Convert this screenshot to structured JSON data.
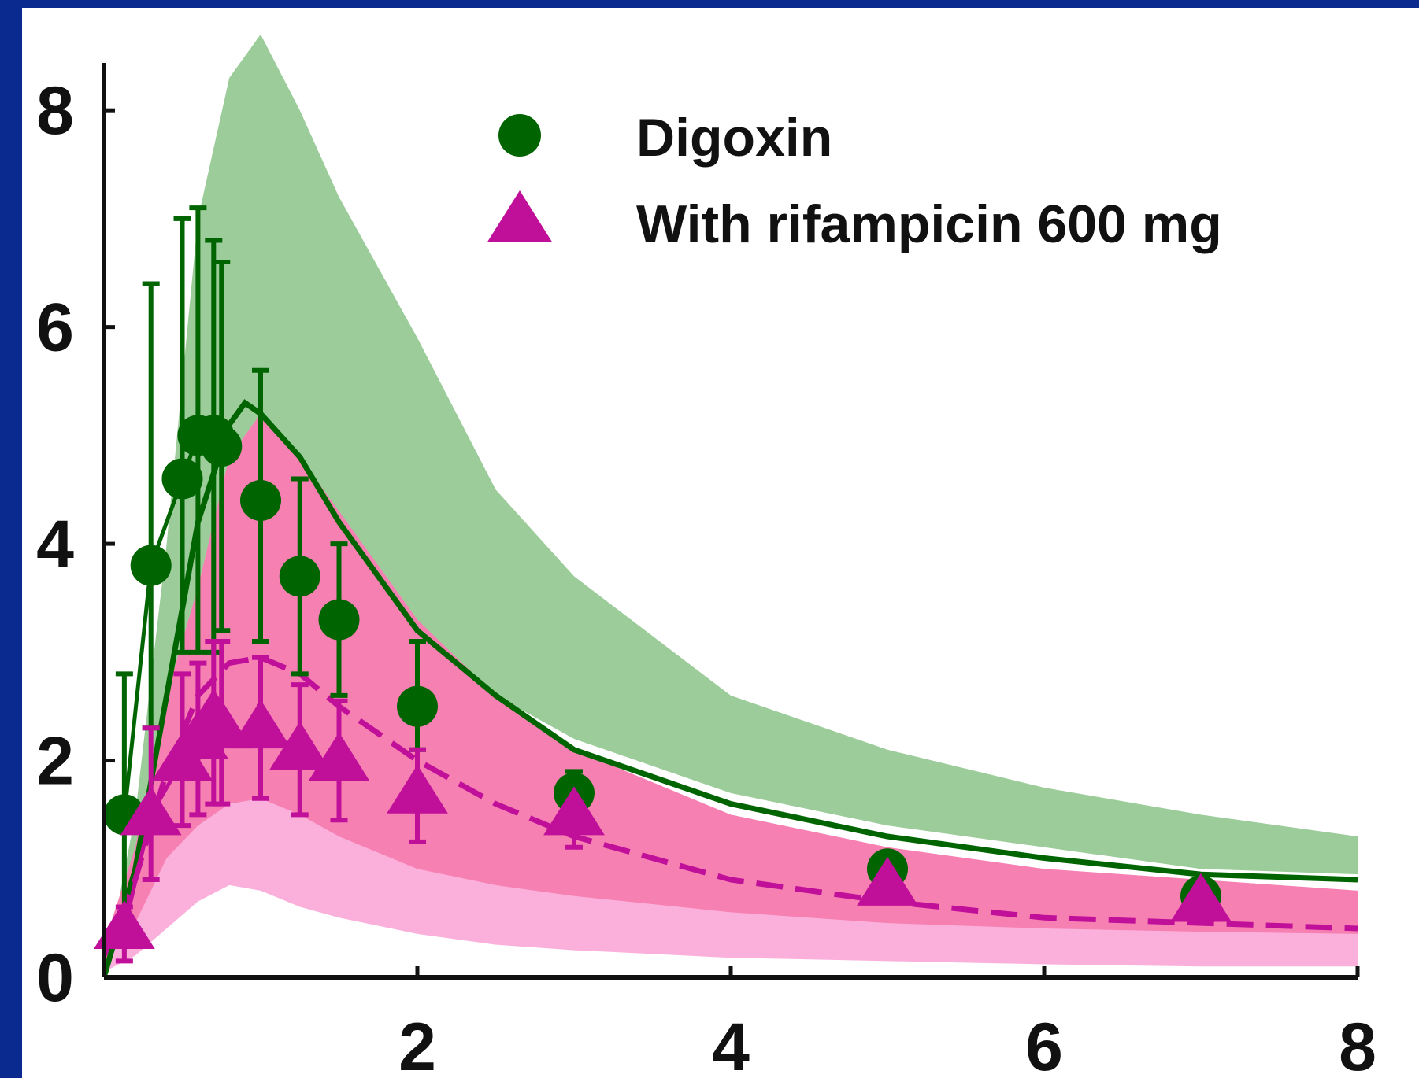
{
  "chart_data": {
    "type": "line",
    "title": "",
    "xlabel": "",
    "ylabel": "",
    "xlim": [
      0,
      8
    ],
    "ylim": [
      0,
      8.8
    ],
    "x_ticks": [
      2,
      4,
      6,
      8
    ],
    "y_ticks": [
      0,
      2,
      4,
      6,
      8
    ],
    "x_tick_labels": [
      "2",
      "4",
      "6",
      "8"
    ],
    "y_tick_labels": [
      "0",
      "2",
      "4",
      "6",
      "8"
    ],
    "grid": false,
    "legend_position": "top-right",
    "colors": {
      "digoxin": "#006400",
      "digoxin_band": "#9ccc9a",
      "rifampicin": "#c0109a",
      "rifampicin_band_outer": "#fbb0dc",
      "rifampicin_band_inner": "#f780b2"
    },
    "series": [
      {
        "name": "Digoxin",
        "marker": "circle",
        "line_style": "solid",
        "observed": {
          "x": [
            0.13,
            0.3,
            0.5,
            0.6,
            0.7,
            0.75,
            1.0,
            1.25,
            1.5,
            2.0,
            3.0,
            5.0,
            7.0
          ],
          "y": [
            1.5,
            3.8,
            4.6,
            5.0,
            5.0,
            4.9,
            4.4,
            3.7,
            3.3,
            2.5,
            1.7,
            1.0,
            0.75
          ],
          "err_low": [
            1.2,
            1.5,
            1.6,
            2.0,
            2.0,
            1.7,
            1.3,
            0.9,
            0.7,
            0.4,
            0.1,
            0.1,
            0.1
          ],
          "err_high": [
            1.3,
            2.6,
            2.4,
            2.1,
            1.8,
            1.7,
            1.2,
            0.9,
            0.7,
            0.6,
            0.2,
            0.1,
            0.1
          ]
        },
        "simulated": {
          "x": [
            0,
            0.2,
            0.4,
            0.6,
            0.8,
            0.9,
            1.0,
            1.25,
            1.5,
            2.0,
            2.5,
            3.0,
            4.0,
            5.0,
            6.0,
            7.0,
            8.0
          ],
          "y": [
            0,
            1.0,
            2.6,
            4.2,
            5.1,
            5.3,
            5.2,
            4.8,
            4.2,
            3.2,
            2.6,
            2.1,
            1.6,
            1.3,
            1.1,
            0.95,
            0.9
          ]
        },
        "band": {
          "x": [
            0,
            0.2,
            0.4,
            0.6,
            0.8,
            1.0,
            1.25,
            1.5,
            2.0,
            2.5,
            3.0,
            4.0,
            5.0,
            6.0,
            7.0,
            8.0
          ],
          "low": [
            0,
            0.9,
            2.0,
            3.1,
            3.8,
            4.6,
            4.3,
            3.9,
            3.1,
            2.6,
            2.2,
            1.7,
            1.4,
            1.2,
            1.0,
            0.95
          ],
          "high": [
            0,
            1.5,
            4.0,
            7.0,
            8.3,
            8.7,
            8.0,
            7.2,
            5.9,
            4.5,
            3.7,
            2.6,
            2.1,
            1.75,
            1.5,
            1.3
          ]
        }
      },
      {
        "name": "With rifampicin 600 mg",
        "marker": "triangle",
        "line_style": "dashed",
        "observed": {
          "x": [
            0.13,
            0.3,
            0.5,
            0.6,
            0.7,
            0.75,
            1.0,
            1.25,
            1.5,
            2.0,
            3.0,
            5.0,
            7.0
          ],
          "y": [
            0.45,
            1.5,
            2.0,
            2.2,
            2.4,
            2.3,
            2.3,
            2.1,
            2.0,
            1.7,
            1.5,
            0.85,
            0.7
          ],
          "err_low": [
            0.3,
            0.6,
            0.6,
            0.7,
            0.8,
            0.7,
            0.65,
            0.6,
            0.55,
            0.45,
            0.3,
            0.1,
            0.05
          ],
          "err_high": [
            0.2,
            0.8,
            0.8,
            0.7,
            0.7,
            0.8,
            0.65,
            0.6,
            0.55,
            0.4,
            0.3,
            0.1,
            0.05
          ]
        },
        "simulated": {
          "x": [
            0,
            0.2,
            0.4,
            0.6,
            0.8,
            1.0,
            1.25,
            1.5,
            2.0,
            2.5,
            3.0,
            4.0,
            5.0,
            6.0,
            7.0,
            8.0
          ],
          "y": [
            0.2,
            0.9,
            1.9,
            2.6,
            2.9,
            2.95,
            2.8,
            2.5,
            2.0,
            1.6,
            1.3,
            0.9,
            0.7,
            0.55,
            0.5,
            0.45
          ]
        },
        "band_outer": {
          "x": [
            0,
            0.2,
            0.4,
            0.6,
            0.8,
            1.0,
            1.25,
            1.5,
            2.0,
            2.5,
            3.0,
            4.0,
            5.0,
            6.0,
            7.0,
            8.0
          ],
          "low": [
            0.05,
            0.2,
            0.45,
            0.7,
            0.85,
            0.8,
            0.65,
            0.55,
            0.4,
            0.3,
            0.25,
            0.18,
            0.15,
            0.12,
            0.1,
            0.1
          ],
          "high": [
            0.3,
            1.2,
            2.6,
            3.6,
            4.8,
            5.2,
            4.8,
            4.3,
            3.3,
            2.6,
            2.1,
            1.5,
            1.2,
            1.0,
            0.9,
            0.8
          ]
        },
        "band_inner": {
          "x": [
            0,
            0.2,
            0.4,
            0.6,
            0.8,
            1.0,
            1.25,
            1.5,
            2.0,
            2.5,
            3.0,
            4.0,
            5.0,
            6.0,
            7.0,
            8.0
          ],
          "low": [
            0.15,
            0.5,
            1.1,
            1.4,
            1.6,
            1.65,
            1.5,
            1.3,
            1.0,
            0.85,
            0.75,
            0.6,
            0.5,
            0.45,
            0.42,
            0.4
          ],
          "high": [
            0.3,
            1.2,
            2.6,
            3.6,
            4.8,
            5.2,
            4.8,
            4.3,
            3.3,
            2.6,
            2.1,
            1.5,
            1.2,
            1.0,
            0.9,
            0.8
          ]
        }
      }
    ],
    "legend": [
      {
        "label": "Digoxin",
        "marker": "circle"
      },
      {
        "label": "With rifampicin 600 mg",
        "marker": "triangle"
      }
    ]
  }
}
